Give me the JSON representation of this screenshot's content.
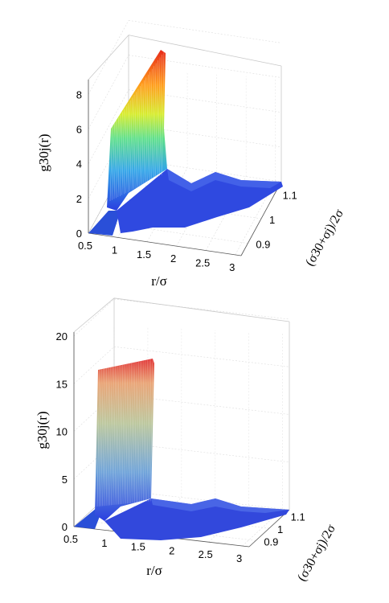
{
  "chart_data": [
    {
      "type": "surface",
      "ylabel": "g30j(r)",
      "xlabel": "r/σ",
      "zlabel": "(σ30+σj)/2σ",
      "x_ticks": [
        "0.5",
        "1",
        "1.5",
        "2",
        "2.5",
        "3"
      ],
      "z_ticks": [
        "0",
        "2",
        "4",
        "6",
        "8"
      ],
      "y_ticks": [
        "0.9",
        "1",
        "1.1"
      ],
      "xlim": [
        0.5,
        3.1
      ],
      "zlim": [
        0,
        9.5
      ],
      "ylim": [
        0.85,
        1.15
      ],
      "grid": true,
      "colormap": "jet",
      "peak_max": 9.4,
      "peak_min": 6.5
    },
    {
      "type": "surface",
      "ylabel": "g30j(r)",
      "xlabel": "r/σ",
      "zlabel": "(σ30+σj)/2σ",
      "x_ticks": [
        "0.5",
        "1",
        "1.5",
        "2",
        "2.5",
        "3"
      ],
      "z_ticks": [
        "0",
        "5",
        "10",
        "15",
        "20"
      ],
      "y_ticks": [
        "0.9",
        "1",
        "1.1"
      ],
      "xlim": [
        0.5,
        3.1
      ],
      "zlim": [
        0,
        20
      ],
      "ylim": [
        0.85,
        1.15
      ],
      "grid": true,
      "colormap": "jet",
      "peak_max": 17.5,
      "peak_min": 16
    }
  ]
}
